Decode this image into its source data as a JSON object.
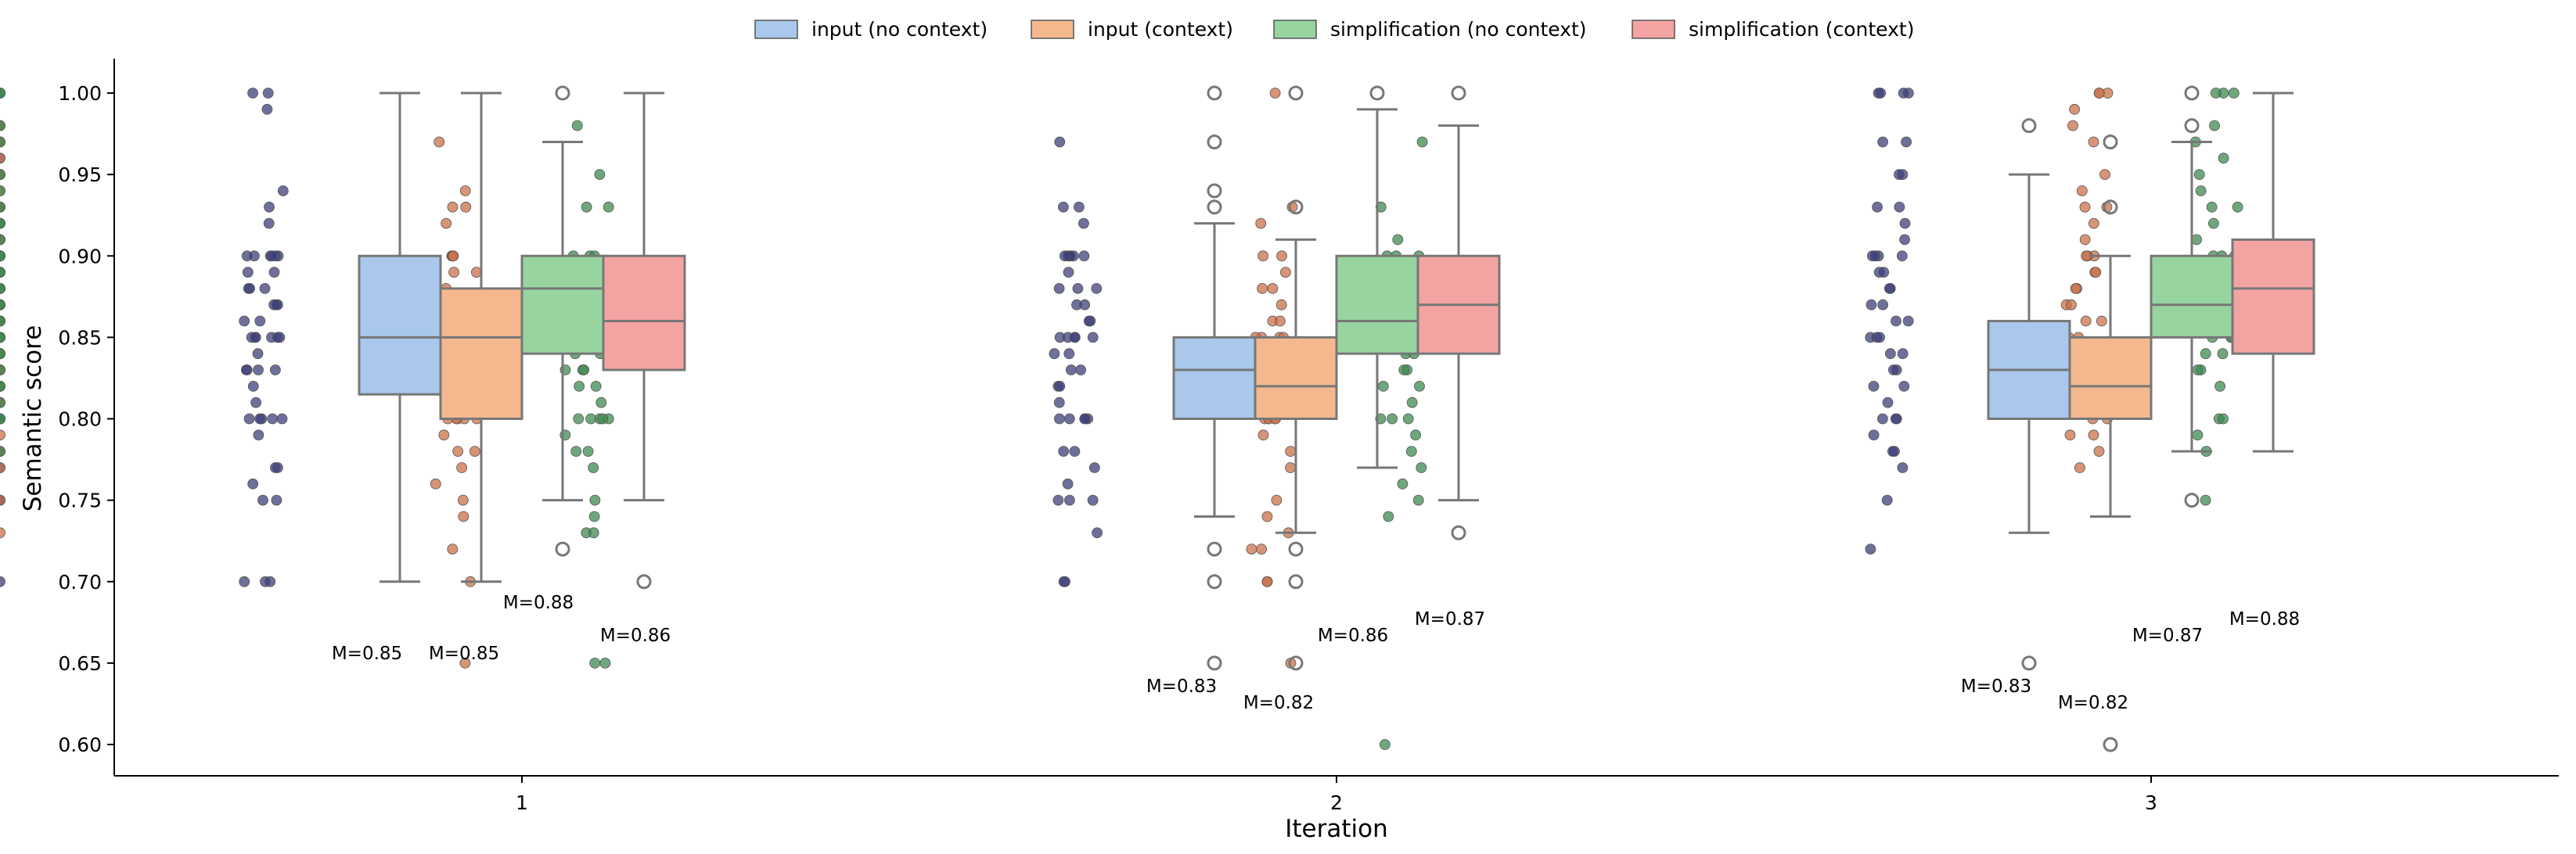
{
  "chart_data": {
    "type": "box",
    "title": "",
    "xlabel": "Iteration",
    "ylabel": "Semantic score",
    "ylim": [
      0.59,
      1.02
    ],
    "yticks": [
      "0.60",
      "0.65",
      "0.70",
      "0.75",
      "0.80",
      "0.85",
      "0.90",
      "0.95",
      "1.00"
    ],
    "categories": [
      "1",
      "2",
      "3"
    ],
    "legend_position": "top-center",
    "series": [
      {
        "name": "input (no context)",
        "color": "#a9c8ec",
        "point_color": "#3d3f7a",
        "boxes": [
          {
            "whislo": 0.7,
            "q1": 0.815,
            "med": 0.85,
            "q3": 0.9,
            "whishi": 1.0,
            "fliers": [],
            "median_label": "M=0.85"
          },
          {
            "whislo": 0.74,
            "q1": 0.8,
            "med": 0.83,
            "q3": 0.85,
            "whishi": 0.92,
            "fliers": [
              0.65,
              0.7,
              0.72,
              0.93,
              0.94,
              0.97,
              1.0
            ],
            "median_label": "M=0.83"
          },
          {
            "whislo": 0.73,
            "q1": 0.8,
            "med": 0.83,
            "q3": 0.86,
            "whishi": 0.95,
            "fliers": [
              0.65,
              0.98
            ],
            "median_label": "M=0.83"
          }
        ]
      },
      {
        "name": "input (context)",
        "color": "#f5b88e",
        "point_color": "#c9704a",
        "boxes": [
          {
            "whislo": 0.7,
            "q1": 0.8,
            "med": 0.85,
            "q3": 0.88,
            "whishi": 1.0,
            "fliers": [],
            "median_label": "M=0.85"
          },
          {
            "whislo": 0.73,
            "q1": 0.8,
            "med": 0.82,
            "q3": 0.85,
            "whishi": 0.91,
            "fliers": [
              0.65,
              0.7,
              0.72,
              0.93,
              1.0
            ],
            "median_label": "M=0.82"
          },
          {
            "whislo": 0.74,
            "q1": 0.8,
            "med": 0.82,
            "q3": 0.85,
            "whishi": 0.9,
            "fliers": [
              0.6,
              0.93,
              0.97
            ],
            "median_label": "M=0.82"
          }
        ]
      },
      {
        "name": "simplification (no context)",
        "color": "#98d4a0",
        "point_color": "#3f8a50",
        "boxes": [
          {
            "whislo": 0.75,
            "q1": 0.84,
            "med": 0.88,
            "q3": 0.9,
            "whishi": 0.97,
            "fliers": [
              0.72,
              1.0
            ],
            "median_label": "M=0.88"
          },
          {
            "whislo": 0.77,
            "q1": 0.84,
            "med": 0.86,
            "q3": 0.9,
            "whishi": 0.99,
            "fliers": [
              1.0
            ],
            "median_label": "M=0.86"
          },
          {
            "whislo": 0.78,
            "q1": 0.85,
            "med": 0.87,
            "q3": 0.9,
            "whishi": 0.97,
            "fliers": [
              0.75,
              0.98,
              1.0
            ],
            "median_label": "M=0.87"
          }
        ]
      },
      {
        "name": "simplification (context)",
        "color": "#f4a3a3",
        "point_color": "#9e3a2a",
        "boxes": [
          {
            "whislo": 0.75,
            "q1": 0.83,
            "med": 0.86,
            "q3": 0.9,
            "whishi": 1.0,
            "fliers": [
              0.7
            ],
            "median_label": "M=0.86"
          },
          {
            "whislo": 0.75,
            "q1": 0.84,
            "med": 0.87,
            "q3": 0.9,
            "whishi": 0.98,
            "fliers": [
              0.73,
              1.0
            ],
            "median_label": "M=0.87"
          },
          {
            "whislo": 0.78,
            "q1": 0.84,
            "med": 0.88,
            "q3": 0.91,
            "whishi": 1.0,
            "fliers": [],
            "median_label": "M=0.88"
          }
        ]
      }
    ],
    "points": [
      [
        [
          1.0,
          1.0,
          0.99,
          0.94,
          0.93,
          0.92,
          0.9,
          0.9,
          0.9,
          0.9,
          0.9,
          0.9,
          0.89,
          0.89,
          0.88,
          0.88,
          0.88,
          0.87,
          0.87,
          0.87,
          0.86,
          0.86,
          0.85,
          0.85,
          0.85,
          0.85,
          0.85,
          0.85,
          0.84,
          0.83,
          0.83,
          0.83,
          0.83,
          0.82,
          0.81,
          0.8,
          0.8,
          0.8,
          0.8,
          0.8,
          0.79,
          0.77,
          0.77,
          0.76,
          0.75,
          0.75,
          0.7,
          0.7,
          0.7
        ],
        [
          0.97,
          0.94,
          0.93,
          0.93,
          0.92,
          0.9,
          0.9,
          0.9,
          0.89,
          0.89,
          0.88,
          0.88,
          0.87,
          0.86,
          0.85,
          0.85,
          0.85,
          0.85,
          0.85,
          0.85,
          0.84,
          0.84,
          0.83,
          0.83,
          0.82,
          0.82,
          0.82,
          0.81,
          0.8,
          0.8,
          0.8,
          0.8,
          0.8,
          0.79,
          0.78,
          0.78,
          0.77,
          0.76,
          0.75,
          0.74,
          0.72,
          0.7,
          0.65
        ],
        [
          0.98,
          0.95,
          0.93,
          0.93,
          0.9,
          0.9,
          0.9,
          0.89,
          0.88,
          0.87,
          0.87,
          0.86,
          0.86,
          0.85,
          0.85,
          0.85,
          0.85,
          0.85,
          0.84,
          0.84,
          0.83,
          0.83,
          0.83,
          0.82,
          0.82,
          0.81,
          0.8,
          0.8,
          0.8,
          0.8,
          0.8,
          0.79,
          0.78,
          0.78,
          0.77,
          0.75,
          0.74,
          0.73,
          0.73,
          0.65,
          0.65
        ]
      ],
      [
        [
          0.97,
          0.93,
          0.93,
          0.92,
          0.9,
          0.9,
          0.9,
          0.9,
          0.9,
          0.9,
          0.89,
          0.88,
          0.88,
          0.88,
          0.87,
          0.87,
          0.86,
          0.86,
          0.85,
          0.85,
          0.85,
          0.85,
          0.85,
          0.84,
          0.84,
          0.83,
          0.83,
          0.82,
          0.82,
          0.81,
          0.8,
          0.8,
          0.8,
          0.8,
          0.8,
          0.78,
          0.78,
          0.77,
          0.76,
          0.75,
          0.75,
          0.75,
          0.73,
          0.7,
          0.7
        ],
        [
          1.0,
          0.93,
          0.92,
          0.9,
          0.9,
          0.89,
          0.88,
          0.88,
          0.87,
          0.86,
          0.86,
          0.85,
          0.85,
          0.85,
          0.85,
          0.84,
          0.84,
          0.83,
          0.83,
          0.82,
          0.82,
          0.81,
          0.8,
          0.8,
          0.8,
          0.8,
          0.8,
          0.79,
          0.78,
          0.77,
          0.75,
          0.74,
          0.73,
          0.72,
          0.72,
          0.7,
          0.7,
          0.65
        ],
        [
          0.97,
          0.93,
          0.91,
          0.9,
          0.9,
          0.9,
          0.89,
          0.88,
          0.87,
          0.86,
          0.86,
          0.85,
          0.85,
          0.85,
          0.85,
          0.84,
          0.84,
          0.83,
          0.83,
          0.82,
          0.82,
          0.81,
          0.8,
          0.8,
          0.8,
          0.79,
          0.78,
          0.77,
          0.76,
          0.75,
          0.74,
          0.6
        ]
      ],
      [
        [
          1.0,
          1.0,
          1.0,
          1.0,
          0.97,
          0.97,
          0.95,
          0.95,
          0.93,
          0.93,
          0.92,
          0.91,
          0.9,
          0.9,
          0.9,
          0.9,
          0.89,
          0.89,
          0.88,
          0.88,
          0.87,
          0.87,
          0.86,
          0.86,
          0.85,
          0.85,
          0.85,
          0.84,
          0.84,
          0.83,
          0.83,
          0.82,
          0.82,
          0.81,
          0.8,
          0.8,
          0.8,
          0.79,
          0.78,
          0.78,
          0.77,
          0.75,
          0.72
        ],
        [
          1.0,
          1.0,
          1.0,
          0.99,
          0.98,
          0.97,
          0.95,
          0.94,
          0.93,
          0.93,
          0.92,
          0.91,
          0.9,
          0.9,
          0.9,
          0.89,
          0.89,
          0.88,
          0.88,
          0.87,
          0.87,
          0.86,
          0.86,
          0.85,
          0.85,
          0.85,
          0.84,
          0.84,
          0.83,
          0.83,
          0.82,
          0.82,
          0.81,
          0.8,
          0.8,
          0.79,
          0.79,
          0.78,
          0.77
        ],
        [
          1.0,
          1.0,
          1.0,
          0.98,
          0.97,
          0.96,
          0.95,
          0.94,
          0.93,
          0.93,
          0.92,
          0.91,
          0.9,
          0.9,
          0.9,
          0.89,
          0.89,
          0.88,
          0.88,
          0.87,
          0.87,
          0.86,
          0.86,
          0.85,
          0.85,
          0.85,
          0.84,
          0.84,
          0.83,
          0.83,
          0.82,
          0.8,
          0.8,
          0.79,
          0.78,
          0.75
        ]
      ],
      [
        [
          1.0,
          1.0,
          1.0,
          0.98,
          0.97,
          0.96,
          0.95,
          0.95,
          0.93,
          0.93,
          0.92,
          0.91,
          0.9,
          0.9,
          0.9,
          0.9,
          0.89,
          0.88,
          0.88,
          0.87,
          0.87,
          0.86,
          0.86,
          0.85,
          0.85,
          0.85,
          0.85,
          0.84,
          0.84,
          0.83,
          0.83,
          0.82,
          0.82,
          0.81,
          0.8,
          0.8,
          0.8,
          0.78,
          0.77,
          0.75,
          0.75,
          0.7
        ],
        [
          1.0,
          1.0,
          0.98,
          0.97,
          0.96,
          0.95,
          0.94,
          0.93,
          0.92,
          0.91,
          0.9,
          0.9,
          0.9,
          0.9,
          0.89,
          0.89,
          0.88,
          0.88,
          0.87,
          0.87,
          0.86,
          0.86,
          0.85,
          0.85,
          0.85,
          0.85,
          0.84,
          0.84,
          0.83,
          0.83,
          0.82,
          0.82,
          0.81,
          0.8,
          0.8,
          0.8,
          0.79,
          0.78,
          0.77,
          0.75,
          0.73
        ],
        [
          1.0,
          1.0,
          1.0,
          0.98,
          0.97,
          0.95,
          0.94,
          0.93,
          0.92,
          0.92,
          0.91,
          0.9,
          0.9,
          0.9,
          0.9,
          0.89,
          0.89,
          0.88,
          0.88,
          0.87,
          0.87,
          0.86,
          0.86,
          0.85,
          0.85,
          0.85,
          0.84,
          0.84,
          0.83,
          0.82,
          0.82,
          0.81,
          0.8,
          0.8,
          0.8,
          0.8,
          0.78
        ]
      ]
    ]
  }
}
